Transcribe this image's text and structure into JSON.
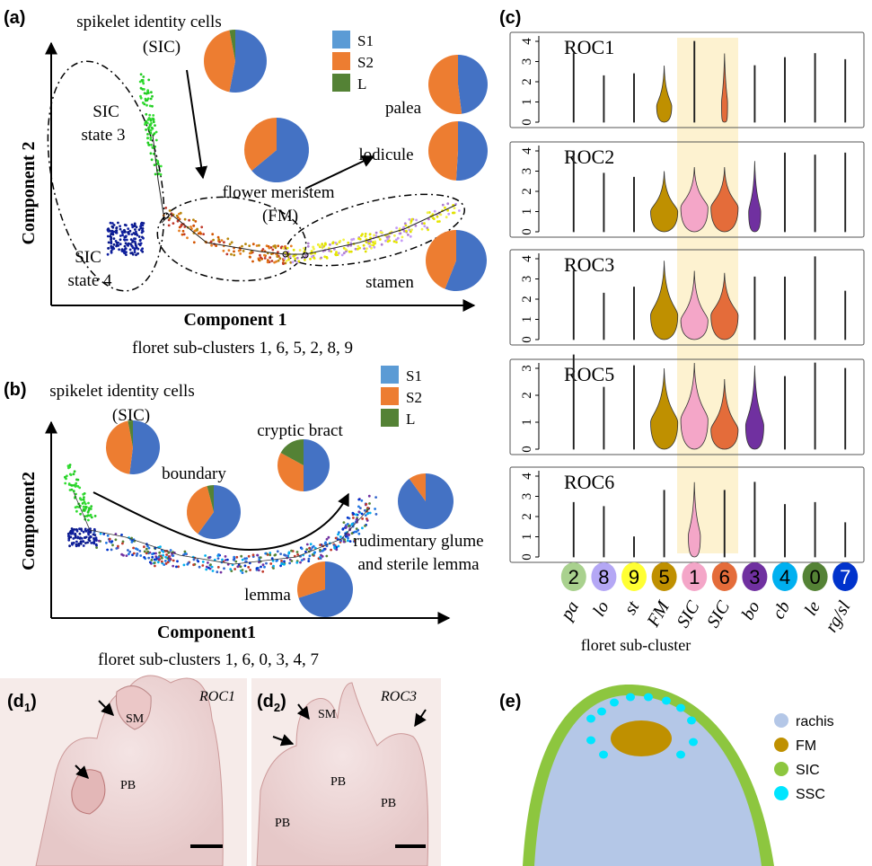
{
  "panel_a": {
    "label": "(a)",
    "sic_title": "spikelet identity cells",
    "sic_abbr": "(SIC)",
    "legend": [
      {
        "label": "S1",
        "color": "#5b9bd5"
      },
      {
        "label": "S2",
        "color": "#ed7d31"
      },
      {
        "label": "L",
        "color": "#548235"
      }
    ],
    "annot": {
      "palea": "palea",
      "lodicule": "lodicule",
      "sic3_a": "SIC",
      "sic3_b": "state 3",
      "fm_a": "flower meristem",
      "fm_b": "(FM)",
      "sic4_a": "SIC",
      "sic4_b": "state 4",
      "stamen": "stamen"
    },
    "xlabel": "Component 1",
    "ylabel": "Component 2",
    "caption": "floret sub-clusters 1, 6, 5, 2, 8, 9"
  },
  "panel_b": {
    "label": "(b)",
    "sic_title": "spikelet identity cells",
    "sic_abbr": "(SIC)",
    "legend": [
      {
        "label": "S1",
        "color": "#5b9bd5"
      },
      {
        "label": "S2",
        "color": "#ed7d31"
      },
      {
        "label": "L",
        "color": "#548235"
      }
    ],
    "annot": {
      "cryptic": "cryptic bract",
      "boundary": "boundary",
      "rud1": "rudimentary glume",
      "rud2": "and sterile lemma",
      "lemma": "lemma"
    },
    "xlabel": "Component1",
    "ylabel": "Component2",
    "caption": "floret sub-clusters 1, 6, 0, 3, 4, 7"
  },
  "panel_c": {
    "label": "(c)",
    "xlabel": "floret sub-cluster",
    "genes": [
      "ROC1",
      "ROC2",
      "ROC3",
      "ROC5",
      "ROC6"
    ],
    "yticks": {
      "ROC1": [
        "0",
        "1",
        "2",
        "3",
        "4"
      ],
      "ROC2": [
        "0",
        "1",
        "2",
        "3",
        "4"
      ],
      "ROC3": [
        "0",
        "1",
        "2",
        "3",
        "4"
      ],
      "ROC5": [
        "0",
        "1",
        "2",
        "3"
      ],
      "ROC6": [
        "0",
        "1",
        "2",
        "3",
        "4"
      ]
    },
    "clusters": [
      {
        "id": "2",
        "label": "pa",
        "color": "#a9d18e",
        "text": "#000"
      },
      {
        "id": "8",
        "label": "lo",
        "color": "#b4a7f5",
        "text": "#000"
      },
      {
        "id": "9",
        "label": "st",
        "color": "#ffff33",
        "text": "#000"
      },
      {
        "id": "5",
        "label": "FM",
        "color": "#bf9000",
        "text": "#000"
      },
      {
        "id": "1",
        "label": "SIC",
        "color": "#f4a6c8",
        "text": "#000"
      },
      {
        "id": "6",
        "label": "SIC",
        "color": "#e46c3a",
        "text": "#000"
      },
      {
        "id": "3",
        "label": "bo",
        "color": "#7030a0",
        "text": "#000"
      },
      {
        "id": "4",
        "label": "cb",
        "color": "#00b0f0",
        "text": "#000"
      },
      {
        "id": "0",
        "label": "le",
        "color": "#548235",
        "text": "#000"
      },
      {
        "id": "7",
        "label": "rg/sl",
        "color": "#0033cc",
        "text": "#fff"
      }
    ]
  },
  "panel_d1": {
    "label": "(d",
    "sub": "1",
    "close": ")",
    "gene": "ROC1",
    "sm": "SM",
    "pb": "PB"
  },
  "panel_d2": {
    "label": "(d",
    "sub": "2",
    "close": ")",
    "gene": "ROC3",
    "sm": "SM",
    "pb1": "PB",
    "pb2": "PB",
    "pb3": "PB"
  },
  "panel_e": {
    "label": "(e)",
    "legend": [
      {
        "label": "rachis",
        "color": "#b4c7e7"
      },
      {
        "label": "FM",
        "color": "#bf9000"
      },
      {
        "label": "SIC",
        "color": "#8dc63f"
      },
      {
        "label": "SSC",
        "color": "#00e5ff"
      }
    ]
  },
  "chart_data": [
    {
      "type": "pie",
      "id": "a-sic",
      "legend": [
        "S1",
        "S2",
        "L"
      ],
      "values": [
        0.53,
        0.44,
        0.03
      ],
      "colors": [
        "#4472c4",
        "#ed7d31",
        "#548235"
      ]
    },
    {
      "type": "pie",
      "id": "a-fm",
      "legend": [
        "S1",
        "S2",
        "L"
      ],
      "values": [
        0.64,
        0.36,
        0.0
      ],
      "colors": [
        "#4472c4",
        "#ed7d31",
        "#548235"
      ]
    },
    {
      "type": "pie",
      "id": "a-palea",
      "legend": [
        "S1",
        "S2",
        "L"
      ],
      "values": [
        0.48,
        0.52,
        0.0
      ],
      "colors": [
        "#4472c4",
        "#ed7d31",
        "#548235"
      ]
    },
    {
      "type": "pie",
      "id": "a-lodicule",
      "legend": [
        "S1",
        "S2",
        "L"
      ],
      "values": [
        0.51,
        0.49,
        0.0
      ],
      "colors": [
        "#4472c4",
        "#ed7d31",
        "#548235"
      ]
    },
    {
      "type": "pie",
      "id": "a-stamen",
      "legend": [
        "S1",
        "S2",
        "L"
      ],
      "values": [
        0.56,
        0.44,
        0.0
      ],
      "colors": [
        "#4472c4",
        "#ed7d31",
        "#548235"
      ]
    },
    {
      "type": "pie",
      "id": "b-sic",
      "legend": [
        "S1",
        "S2",
        "L"
      ],
      "values": [
        0.52,
        0.45,
        0.03
      ],
      "colors": [
        "#4472c4",
        "#ed7d31",
        "#548235"
      ]
    },
    {
      "type": "pie",
      "id": "b-boundary",
      "legend": [
        "S1",
        "S2",
        "L"
      ],
      "values": [
        0.6,
        0.36,
        0.04
      ],
      "colors": [
        "#4472c4",
        "#ed7d31",
        "#548235"
      ]
    },
    {
      "type": "pie",
      "id": "b-cryptic",
      "legend": [
        "S1",
        "S2",
        "L"
      ],
      "values": [
        0.5,
        0.33,
        0.17
      ],
      "colors": [
        "#4472c4",
        "#ed7d31",
        "#548235"
      ]
    },
    {
      "type": "pie",
      "id": "b-rudimentary",
      "legend": [
        "S1",
        "S2",
        "L"
      ],
      "values": [
        0.9,
        0.1,
        0.0
      ],
      "colors": [
        "#4472c4",
        "#ed7d31",
        "#548235"
      ]
    },
    {
      "type": "pie",
      "id": "b-lemma",
      "legend": [
        "S1",
        "S2",
        "L"
      ],
      "values": [
        0.7,
        0.3,
        0.0
      ],
      "colors": [
        "#4472c4",
        "#ed7d31",
        "#548235"
      ]
    },
    {
      "type": "violin",
      "id": "c-violins",
      "xlabel": "floret sub-cluster",
      "categories": [
        "pa",
        "lo",
        "st",
        "FM",
        "SIC",
        "SIC",
        "bo",
        "cb",
        "le",
        "rg/sl"
      ],
      "series": [
        {
          "name": "ROC1",
          "ylim": [
            0,
            4
          ],
          "max": [
            3.4,
            2.3,
            2.4,
            2.8,
            4.0,
            3.4,
            2.8,
            3.2,
            3.4,
            3.1
          ],
          "width": [
            0.05,
            0.05,
            0.05,
            0.5,
            0.05,
            0.2,
            0.05,
            0.05,
            0.05,
            0.05
          ],
          "mode": [
            0.2,
            0,
            0,
            0.4,
            0,
            0.1,
            0,
            0,
            0,
            0
          ]
        },
        {
          "name": "ROC2",
          "ylim": [
            0,
            4
          ],
          "max": [
            4.0,
            2.9,
            2.7,
            3.0,
            3.2,
            3.2,
            3.5,
            3.9,
            3.8,
            3.9
          ],
          "width": [
            0.05,
            0.05,
            0.05,
            0.9,
            0.9,
            0.9,
            0.4,
            0.05,
            0.05,
            0.05
          ],
          "mode": [
            0,
            0,
            0,
            1.0,
            1.2,
            1.2,
            0.2,
            0,
            0,
            0
          ]
        },
        {
          "name": "ROC3",
          "ylim": [
            0,
            4
          ],
          "max": [
            3.4,
            2.3,
            2.6,
            3.9,
            3.4,
            3.3,
            3.1,
            3.1,
            4.1,
            2.4
          ],
          "width": [
            0.05,
            0.05,
            0.05,
            0.9,
            0.9,
            0.9,
            0.05,
            0.05,
            0.05,
            0.05
          ],
          "mode": [
            0,
            0,
            0,
            1.2,
            0.9,
            1.2,
            0,
            0,
            0,
            0
          ]
        },
        {
          "name": "ROC5",
          "ylim": [
            0,
            3
          ],
          "max": [
            3.5,
            2.3,
            3.1,
            3.0,
            3.2,
            2.6,
            3.1,
            2.7,
            3.2,
            3.0
          ],
          "width": [
            0.05,
            0.05,
            0.05,
            0.9,
            0.9,
            0.9,
            0.6,
            0.05,
            0.05,
            0.05
          ],
          "mode": [
            0,
            0,
            0,
            1.0,
            1.1,
            0.7,
            0.3,
            0,
            0,
            0
          ]
        },
        {
          "name": "ROC6",
          "ylim": [
            0,
            4
          ],
          "max": [
            2.7,
            2.5,
            1.0,
            3.3,
            3.7,
            3.3,
            3.7,
            2.6,
            2.7,
            1.7
          ],
          "width": [
            0.05,
            0.05,
            0.05,
            0.05,
            0.4,
            0.05,
            0.05,
            0.05,
            0.05,
            0.05
          ],
          "mode": [
            0,
            0,
            0,
            0,
            0.2,
            0,
            0,
            0,
            0,
            0
          ]
        }
      ]
    }
  ]
}
